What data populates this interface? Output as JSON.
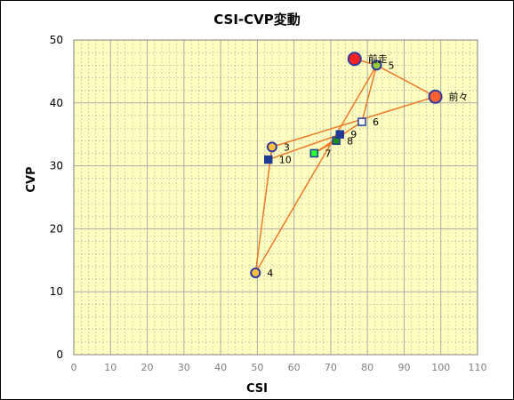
{
  "colors": {
    "plot_bg": "#FFFFC0",
    "grid": "#A9A9A9",
    "line": "#F07828",
    "marker_dark_blue": "#1E3C96",
    "marker_white": "#FFFFFF",
    "marker_green": "#32FF32",
    "marker_darkgreen": "#228B22",
    "marker_orange_circle": "#FFC040",
    "marker_red_circle": "#FF2020",
    "marker_orange2_circle": "#FF6030",
    "marker_lime_circle": "#9ACD32",
    "circle_outline_blue": "#2E3A9E"
  },
  "chart_data": {
    "type": "scatter",
    "title": "CSI-CVP変動",
    "xlabel": "CSI",
    "ylabel": "CVP",
    "xlim": [
      0,
      110
    ],
    "ylim": [
      0,
      50
    ],
    "xticks": [
      0,
      10,
      20,
      30,
      40,
      50,
      60,
      70,
      80,
      90,
      100,
      110
    ],
    "yticks": [
      0,
      10,
      20,
      30,
      40,
      50
    ],
    "grid": true,
    "legend": "none",
    "points": [
      {
        "label": "前々",
        "x": 98.5,
        "y": 41,
        "marker": "circle",
        "fill": "#FF6030",
        "stroke": "#2E3A9E",
        "size": 7
      },
      {
        "label": "前走",
        "x": 76.5,
        "y": 47,
        "marker": "circle",
        "fill": "#FF2020",
        "stroke": "#2E3A9E",
        "size": 7
      },
      {
        "label": "3",
        "x": 54,
        "y": 33,
        "marker": "circle",
        "fill": "#FFC040",
        "stroke": "#2E3A9E",
        "size": 5
      },
      {
        "label": "4",
        "x": 49.5,
        "y": 13,
        "marker": "circle",
        "fill": "#FFC040",
        "stroke": "#2E3A9E",
        "size": 5
      },
      {
        "label": "5",
        "x": 82.5,
        "y": 46,
        "marker": "circle",
        "fill": "#9ACD32",
        "stroke": "#2E3A9E",
        "size": 5
      },
      {
        "label": "6",
        "x": 78.5,
        "y": 37,
        "marker": "square",
        "fill": "#FFFFFF",
        "stroke": "#1E3C96",
        "size": 4
      },
      {
        "label": "7",
        "x": 65.5,
        "y": 32,
        "marker": "square",
        "fill": "#32FF32",
        "stroke": "#1E3C96",
        "size": 4
      },
      {
        "label": "8",
        "x": 71.5,
        "y": 34,
        "marker": "square",
        "fill": "#228B22",
        "stroke": "#1E3C96",
        "size": 4
      },
      {
        "label": "9",
        "x": 72.5,
        "y": 35,
        "marker": "square",
        "fill": "#1E3C96",
        "stroke": "#1E3C96",
        "size": 4
      },
      {
        "label": "10",
        "x": 53,
        "y": 31,
        "marker": "square",
        "fill": "#1E3C96",
        "stroke": "#1E3C96",
        "size": 4
      }
    ],
    "path_order": [
      "10",
      "9",
      "8",
      "7",
      "6",
      "5",
      "4",
      "3",
      "前々",
      "5",
      "前走"
    ]
  }
}
